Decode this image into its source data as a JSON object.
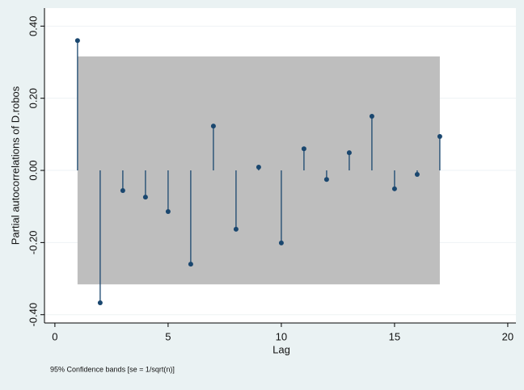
{
  "chart_data": {
    "type": "stem",
    "y_label": "Partial autocorrelations of D.robos",
    "x_label": "Lag",
    "note": "95% Confidence bands [se = 1/sqrt(n)]",
    "x": [
      1,
      2,
      3,
      4,
      5,
      6,
      7,
      8,
      9,
      10,
      11,
      12,
      13,
      14,
      15,
      16,
      17
    ],
    "values": [
      0.36,
      -0.367,
      -0.056,
      -0.074,
      -0.114,
      -0.26,
      0.123,
      -0.163,
      0.009,
      -0.201,
      0.06,
      -0.025,
      0.049,
      0.15,
      -0.051,
      -0.011,
      0.094
    ],
    "color": "#1a476f",
    "band_x": [
      1,
      17
    ],
    "band": [
      -0.316,
      0.316
    ],
    "band_color": "#bebebe",
    "xlim": [
      -0.46,
      20.36
    ],
    "xticks": [
      0,
      5,
      10,
      15,
      20
    ],
    "ylim": [
      -0.423,
      0.45
    ],
    "yticks": [
      {
        "value": -0.4,
        "label": "-0.40"
      },
      {
        "value": -0.2,
        "label": "-0.20"
      },
      {
        "value": 0,
        "label": "0.00"
      },
      {
        "value": 0.2,
        "label": "0.20"
      },
      {
        "value": 0.4,
        "label": "0.40"
      }
    ],
    "grid": true
  }
}
